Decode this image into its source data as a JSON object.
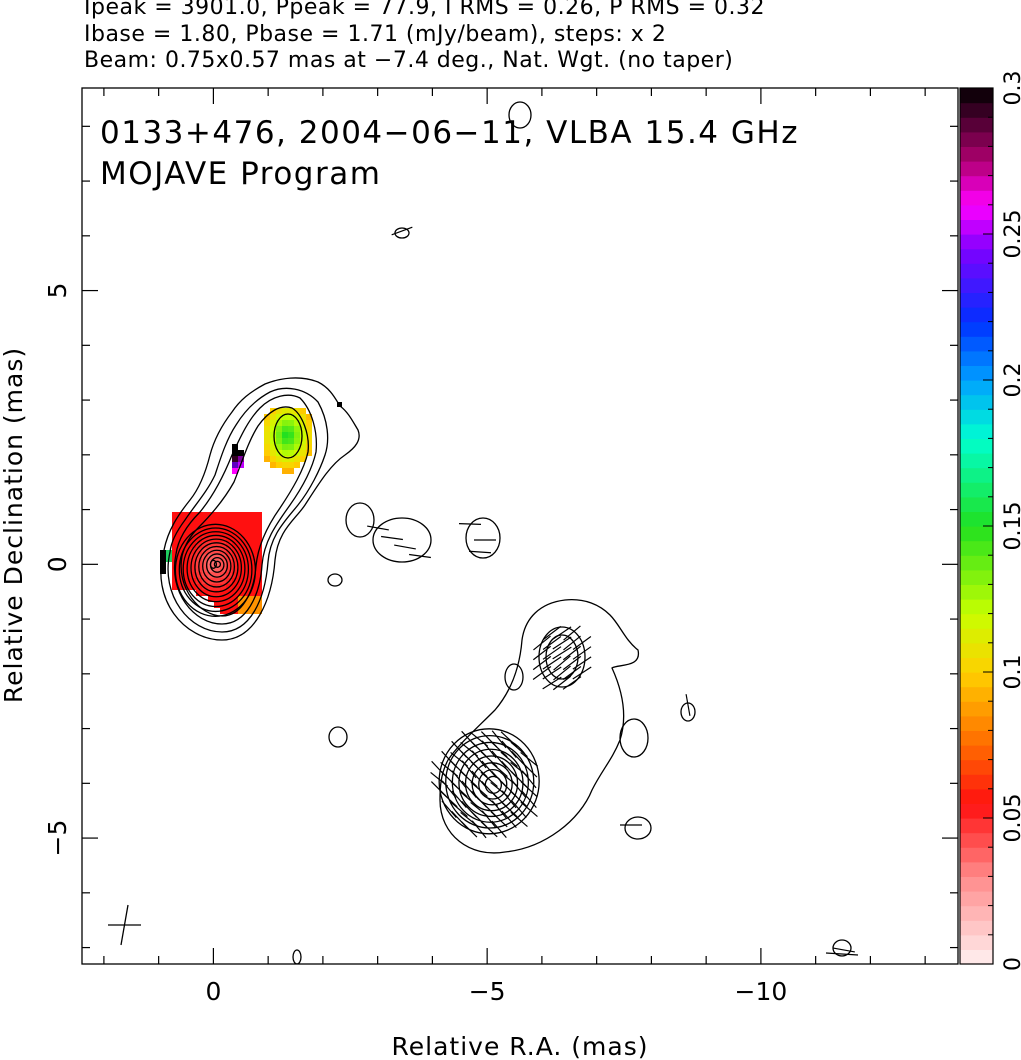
{
  "header": {
    "line1": "Ipeak = 3901.0, Ppeak = 77.9, I RMS = 0.26, P RMS = 0.32",
    "line2": "Ibase = 1.80, Pbase = 1.71 (mJy/beam), steps: x 2",
    "line3": "Beam: 0.75x0.57 mas at −7.4 deg., Nat. Wgt. (no taper)"
  },
  "chart_data": {
    "type": "heatmap",
    "title": "0133+476, 2004−06−11, VLBA 15.4 GHz",
    "subtitle": "MOJAVE Program",
    "xlabel": "Relative R.A. (mas)",
    "ylabel": "Relative Declination (mas)",
    "xlim": [
      2.4,
      -13.6
    ],
    "ylim": [
      -7.3,
      8.7
    ],
    "x_ticks": [
      {
        "v": 0,
        "label": "0"
      },
      {
        "v": -5,
        "label": "−5"
      },
      {
        "v": -10,
        "label": "−10"
      }
    ],
    "y_ticks": [
      {
        "v": 5,
        "label": "5"
      },
      {
        "v": 0,
        "label": "0"
      },
      {
        "v": -5,
        "label": "−5"
      }
    ],
    "colorbar": {
      "range": [
        0,
        0.3
      ],
      "ticks": [
        {
          "v": 0,
          "label": "0"
        },
        {
          "v": 0.05,
          "label": "0.05"
        },
        {
          "v": 0.1,
          "label": "0.1"
        },
        {
          "v": 0.15,
          "label": "0.15"
        },
        {
          "v": 0.2,
          "label": "0.2"
        },
        {
          "v": 0.25,
          "label": "0.25"
        },
        {
          "v": 0.3,
          "label": "0.3"
        }
      ],
      "stops": [
        {
          "v": 0.0,
          "c": "#fff0f0"
        },
        {
          "v": 0.03,
          "c": "#ff8a8a"
        },
        {
          "v": 0.055,
          "c": "#ff1010"
        },
        {
          "v": 0.075,
          "c": "#ff6a00"
        },
        {
          "v": 0.1,
          "c": "#ffd000"
        },
        {
          "v": 0.12,
          "c": "#c8ff00"
        },
        {
          "v": 0.15,
          "c": "#20e020"
        },
        {
          "v": 0.18,
          "c": "#00ffd0"
        },
        {
          "v": 0.2,
          "c": "#00a0ff"
        },
        {
          "v": 0.22,
          "c": "#0030ff"
        },
        {
          "v": 0.245,
          "c": "#8000ff"
        },
        {
          "v": 0.26,
          "c": "#ff00ff"
        },
        {
          "v": 0.275,
          "c": "#b00070"
        },
        {
          "v": 0.3,
          "c": "#000000"
        }
      ]
    },
    "features": {
      "core": {
        "x": 0.0,
        "y": 0.0,
        "levels": 11
      },
      "knot_north": {
        "x": -1.35,
        "y": 2.35
      },
      "knot_southwest": {
        "x": -5.0,
        "y": -4.0,
        "levels": 8
      },
      "knot_southwest_2": {
        "x": -6.4,
        "y": -1.7
      }
    },
    "fractional_polarization_regions": [
      {
        "name": "core",
        "x": [
          -1.0,
          0.75
        ],
        "y": [
          -0.8,
          0.9
        ],
        "value": 0.045
      },
      {
        "name": "north-knot",
        "x": [
          -1.85,
          -1.0
        ],
        "y": [
          1.6,
          2.8
        ],
        "value": 0.14
      }
    ]
  }
}
